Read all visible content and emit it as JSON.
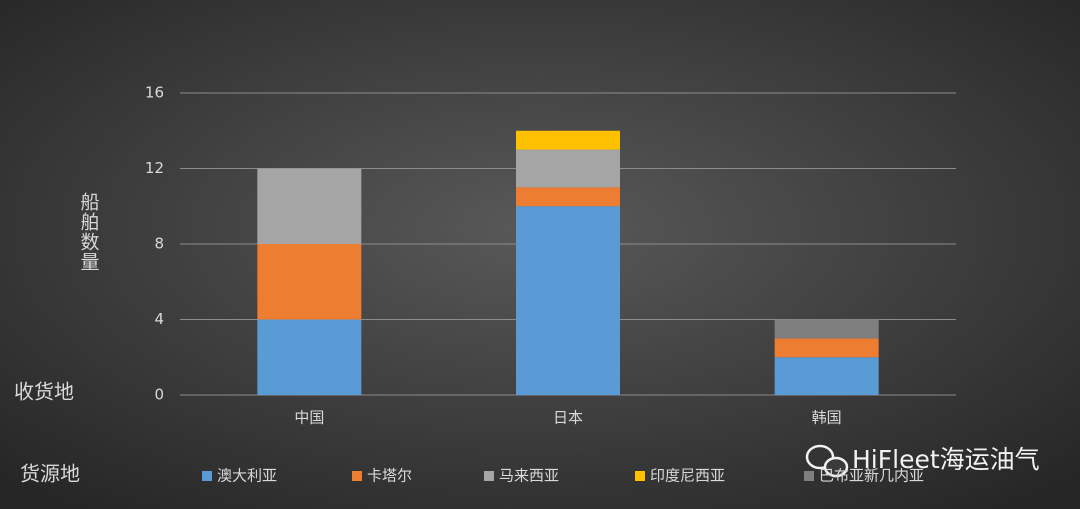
{
  "chart_data": {
    "type": "bar",
    "stacked": true,
    "y_axis_title": "船舶数量",
    "x_axis_title": "收货地",
    "legend_title": "货源地",
    "watermark": "HiFleet海运油气",
    "categories": [
      "中国",
      "日本",
      "韩国"
    ],
    "series": [
      {
        "name": "澳大利亚",
        "color": "#5b9bd5",
        "values": [
          4,
          10,
          2
        ]
      },
      {
        "name": "卡塔尔",
        "color": "#ed7d31",
        "values": [
          4,
          1,
          1
        ]
      },
      {
        "name": "马来西亚",
        "color": "#a5a5a5",
        "values": [
          4,
          2,
          0
        ]
      },
      {
        "name": "印度尼西亚",
        "color": "#ffc000",
        "values": [
          0,
          1,
          0
        ]
      },
      {
        "name": "巴布亚新几内亚",
        "color": "#7f7f7f",
        "values": [
          0,
          0,
          1
        ]
      }
    ],
    "ylim": [
      0,
      16
    ],
    "yticks": [
      0,
      4,
      8,
      12,
      16
    ],
    "grid": true,
    "legend": "bottom"
  }
}
